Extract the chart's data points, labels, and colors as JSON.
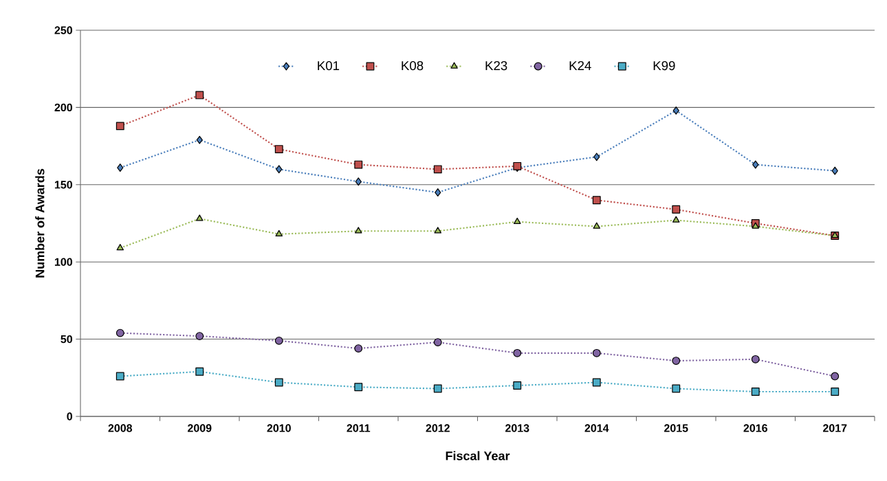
{
  "chart_data": {
    "type": "line",
    "xlabel": "Fiscal Year",
    "ylabel": "Number of Awards",
    "categories": [
      "2008",
      "2009",
      "2010",
      "2011",
      "2012",
      "2013",
      "2014",
      "2015",
      "2016",
      "2017"
    ],
    "series": [
      {
        "name": "K01",
        "color": "#4a7ebb",
        "marker": "diamond",
        "values": [
          161,
          179,
          160,
          152,
          145,
          161,
          168,
          198,
          163,
          159
        ]
      },
      {
        "name": "K08",
        "color": "#c0504d",
        "marker": "square",
        "values": [
          188,
          208,
          173,
          163,
          160,
          162,
          140,
          134,
          125,
          117
        ]
      },
      {
        "name": "K23",
        "color": "#9bbb59",
        "marker": "triangle",
        "values": [
          109,
          128,
          118,
          120,
          120,
          126,
          123,
          127,
          123,
          117
        ]
      },
      {
        "name": "K24",
        "color": "#8064a2",
        "marker": "circle",
        "values": [
          54,
          52,
          49,
          44,
          48,
          41,
          41,
          36,
          37,
          26
        ]
      },
      {
        "name": "K99",
        "color": "#4bacc6",
        "marker": "square",
        "values": [
          26,
          29,
          22,
          19,
          18,
          20,
          22,
          18,
          16,
          16
        ]
      }
    ],
    "ylim": [
      0,
      250
    ],
    "yticks": [
      0,
      50,
      100,
      150,
      200,
      250
    ],
    "grid": "y",
    "legend": "top",
    "line_style": "dotted"
  }
}
